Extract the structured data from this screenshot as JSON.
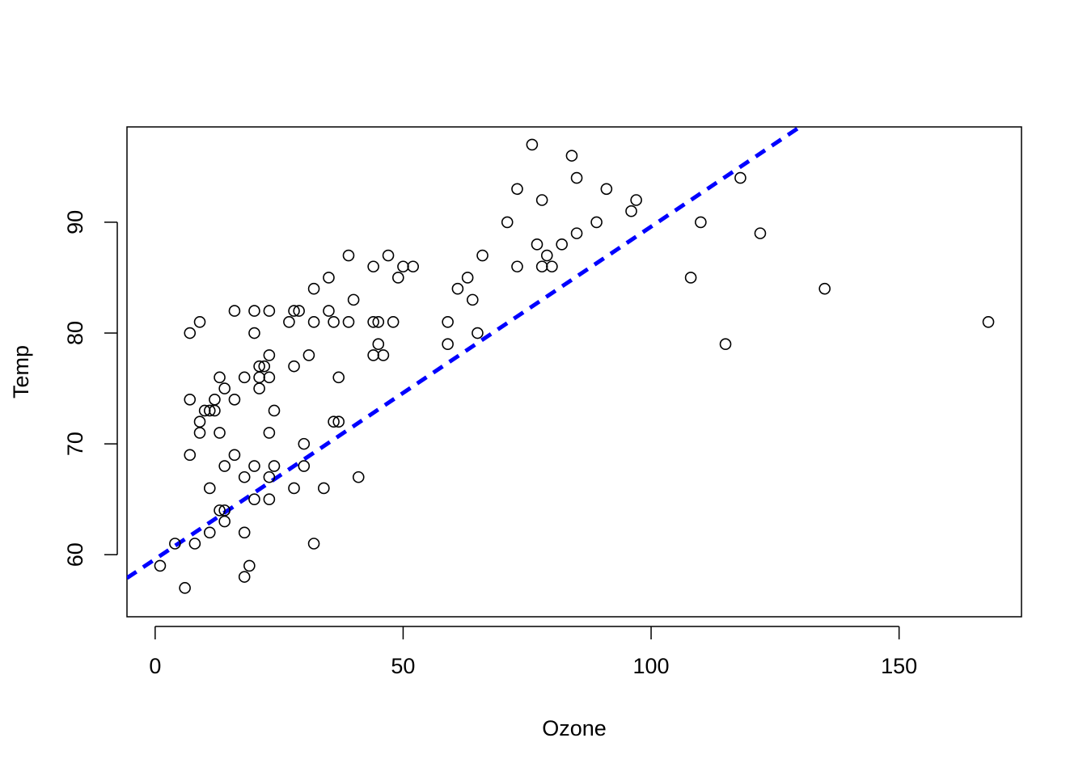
{
  "chart_data": {
    "type": "scatter",
    "title": "",
    "xlabel": "Ozone",
    "ylabel": "Temp",
    "xlim": [
      -5.68,
      174.68
    ],
    "ylim": [
      54.4,
      98.6
    ],
    "x_ticks": [
      0,
      50,
      100,
      150
    ],
    "y_ticks": [
      60,
      70,
      80,
      90
    ],
    "x_tick_labels": [
      "0",
      "50",
      "100",
      "150"
    ],
    "y_tick_labels": [
      "60",
      "70",
      "80",
      "90"
    ],
    "grid": false,
    "legend": "none",
    "point_color": "#000000",
    "line_color": "#0000ff",
    "reference_line": {
      "style": "dashed",
      "color": "#0000ff",
      "intercept": 59.6,
      "slope": 0.3
    },
    "points": [
      {
        "x": 1,
        "y": 59
      },
      {
        "x": 4,
        "y": 61
      },
      {
        "x": 6,
        "y": 57
      },
      {
        "x": 7,
        "y": 80
      },
      {
        "x": 7,
        "y": 74
      },
      {
        "x": 7,
        "y": 69
      },
      {
        "x": 8,
        "y": 61
      },
      {
        "x": 9,
        "y": 81
      },
      {
        "x": 9,
        "y": 72
      },
      {
        "x": 9,
        "y": 71
      },
      {
        "x": 10,
        "y": 73
      },
      {
        "x": 11,
        "y": 73
      },
      {
        "x": 11,
        "y": 66
      },
      {
        "x": 11,
        "y": 62
      },
      {
        "x": 12,
        "y": 74
      },
      {
        "x": 12,
        "y": 73
      },
      {
        "x": 13,
        "y": 76
      },
      {
        "x": 13,
        "y": 71
      },
      {
        "x": 13,
        "y": 64
      },
      {
        "x": 14,
        "y": 75
      },
      {
        "x": 14,
        "y": 68
      },
      {
        "x": 14,
        "y": 64
      },
      {
        "x": 14,
        "y": 63
      },
      {
        "x": 16,
        "y": 82
      },
      {
        "x": 16,
        "y": 74
      },
      {
        "x": 16,
        "y": 69
      },
      {
        "x": 18,
        "y": 76
      },
      {
        "x": 18,
        "y": 67
      },
      {
        "x": 18,
        "y": 62
      },
      {
        "x": 18,
        "y": 58
      },
      {
        "x": 19,
        "y": 59
      },
      {
        "x": 20,
        "y": 82
      },
      {
        "x": 20,
        "y": 80
      },
      {
        "x": 20,
        "y": 68
      },
      {
        "x": 20,
        "y": 65
      },
      {
        "x": 21,
        "y": 77
      },
      {
        "x": 21,
        "y": 76
      },
      {
        "x": 21,
        "y": 75
      },
      {
        "x": 22,
        "y": 77
      },
      {
        "x": 23,
        "y": 82
      },
      {
        "x": 23,
        "y": 78
      },
      {
        "x": 23,
        "y": 76
      },
      {
        "x": 23,
        "y": 71
      },
      {
        "x": 23,
        "y": 67
      },
      {
        "x": 23,
        "y": 65
      },
      {
        "x": 24,
        "y": 73
      },
      {
        "x": 24,
        "y": 68
      },
      {
        "x": 27,
        "y": 81
      },
      {
        "x": 28,
        "y": 82
      },
      {
        "x": 28,
        "y": 77
      },
      {
        "x": 28,
        "y": 66
      },
      {
        "x": 29,
        "y": 82
      },
      {
        "x": 30,
        "y": 70
      },
      {
        "x": 30,
        "y": 68
      },
      {
        "x": 31,
        "y": 78
      },
      {
        "x": 32,
        "y": 84
      },
      {
        "x": 32,
        "y": 81
      },
      {
        "x": 32,
        "y": 61
      },
      {
        "x": 34,
        "y": 66
      },
      {
        "x": 35,
        "y": 85
      },
      {
        "x": 35,
        "y": 82
      },
      {
        "x": 36,
        "y": 81
      },
      {
        "x": 36,
        "y": 72
      },
      {
        "x": 37,
        "y": 76
      },
      {
        "x": 37,
        "y": 72
      },
      {
        "x": 39,
        "y": 87
      },
      {
        "x": 39,
        "y": 81
      },
      {
        "x": 40,
        "y": 83
      },
      {
        "x": 41,
        "y": 67
      },
      {
        "x": 44,
        "y": 86
      },
      {
        "x": 44,
        "y": 81
      },
      {
        "x": 44,
        "y": 78
      },
      {
        "x": 45,
        "y": 81
      },
      {
        "x": 45,
        "y": 79
      },
      {
        "x": 46,
        "y": 78
      },
      {
        "x": 47,
        "y": 87
      },
      {
        "x": 48,
        "y": 81
      },
      {
        "x": 49,
        "y": 85
      },
      {
        "x": 50,
        "y": 86
      },
      {
        "x": 52,
        "y": 86
      },
      {
        "x": 59,
        "y": 81
      },
      {
        "x": 59,
        "y": 79
      },
      {
        "x": 61,
        "y": 84
      },
      {
        "x": 63,
        "y": 85
      },
      {
        "x": 64,
        "y": 83
      },
      {
        "x": 65,
        "y": 80
      },
      {
        "x": 66,
        "y": 87
      },
      {
        "x": 71,
        "y": 90
      },
      {
        "x": 73,
        "y": 93
      },
      {
        "x": 73,
        "y": 86
      },
      {
        "x": 76,
        "y": 97
      },
      {
        "x": 77,
        "y": 88
      },
      {
        "x": 78,
        "y": 92
      },
      {
        "x": 78,
        "y": 86
      },
      {
        "x": 79,
        "y": 87
      },
      {
        "x": 80,
        "y": 86
      },
      {
        "x": 82,
        "y": 88
      },
      {
        "x": 84,
        "y": 96
      },
      {
        "x": 85,
        "y": 94
      },
      {
        "x": 85,
        "y": 89
      },
      {
        "x": 89,
        "y": 90
      },
      {
        "x": 91,
        "y": 93
      },
      {
        "x": 96,
        "y": 91
      },
      {
        "x": 97,
        "y": 92
      },
      {
        "x": 108,
        "y": 85
      },
      {
        "x": 110,
        "y": 90
      },
      {
        "x": 115,
        "y": 79
      },
      {
        "x": 118,
        "y": 94
      },
      {
        "x": 122,
        "y": 89
      },
      {
        "x": 135,
        "y": 84
      },
      {
        "x": 168,
        "y": 81
      }
    ]
  }
}
